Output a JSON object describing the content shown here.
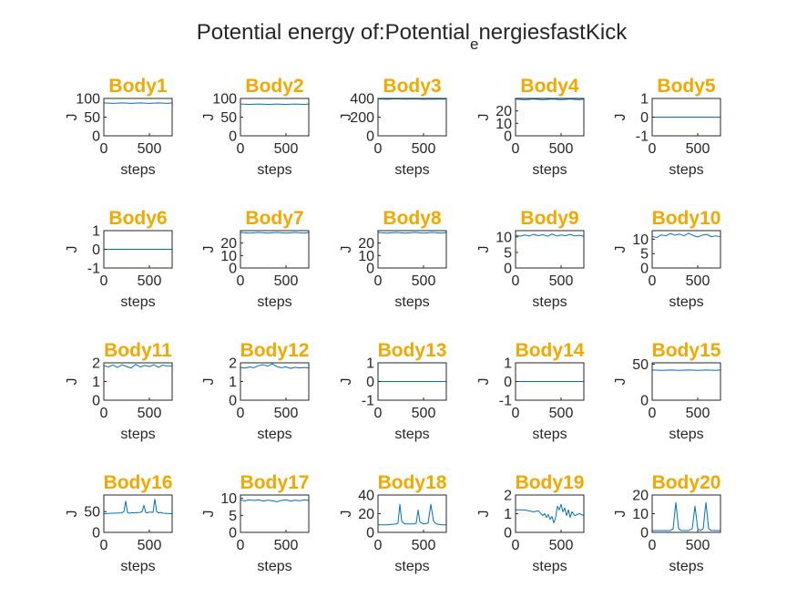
{
  "figure": {
    "title_main": "Potential energy of:Potential",
    "title_sub": "e",
    "title_rest": "nergiesfastKick"
  },
  "colors": {
    "title": "#F3A800",
    "line": "#0072BD",
    "axis": "#262626",
    "text": "#262626"
  },
  "chart_data": [
    {
      "type": "line",
      "title": "Body1",
      "xlabel": "steps",
      "ylabel": "J",
      "xlim": [
        0,
        750
      ],
      "ylim": [
        0,
        100
      ],
      "yticks": [
        0,
        50,
        100
      ],
      "xticks": [
        0,
        500
      ],
      "series": [
        {
          "x": [
            0,
            100,
            200,
            300,
            400,
            500,
            600,
            700,
            750
          ],
          "y": [
            88,
            87,
            88,
            87,
            88,
            87,
            88,
            87,
            88
          ]
        }
      ]
    },
    {
      "type": "line",
      "title": "Body2",
      "xlabel": "steps",
      "ylabel": "J",
      "xlim": [
        0,
        750
      ],
      "ylim": [
        0,
        100
      ],
      "yticks": [
        0,
        50,
        100
      ],
      "xticks": [
        0,
        500
      ],
      "series": [
        {
          "x": [
            0,
            100,
            200,
            300,
            400,
            500,
            600,
            700,
            750
          ],
          "y": [
            85,
            84,
            85,
            84,
            85,
            84,
            85,
            84,
            85
          ]
        }
      ]
    },
    {
      "type": "line",
      "title": "Body3",
      "xlabel": "steps",
      "ylabel": "J",
      "xlim": [
        0,
        750
      ],
      "ylim": [
        0,
        400
      ],
      "yticks": [
        0,
        200,
        400
      ],
      "xticks": [
        0,
        500
      ],
      "series": [
        {
          "x": [
            0,
            100,
            200,
            300,
            400,
            500,
            600,
            700,
            750
          ],
          "y": [
            395,
            392,
            396,
            393,
            395,
            392,
            394,
            393,
            395
          ]
        }
      ]
    },
    {
      "type": "line",
      "title": "Body4",
      "xlabel": "steps",
      "ylabel": "J",
      "xlim": [
        0,
        750
      ],
      "ylim": [
        0,
        30
      ],
      "yticks": [
        0,
        10,
        20
      ],
      "xticks": [
        0,
        500
      ],
      "series": [
        {
          "x": [
            0,
            100,
            200,
            300,
            400,
            500,
            600,
            700,
            750
          ],
          "y": [
            29.5,
            29,
            29.5,
            29,
            29.5,
            29,
            29.5,
            29,
            29.5
          ]
        }
      ]
    },
    {
      "type": "line",
      "title": "Body5",
      "xlabel": "steps",
      "ylabel": "J",
      "xlim": [
        0,
        750
      ],
      "ylim": [
        -1,
        1
      ],
      "yticks": [
        -1,
        0,
        1
      ],
      "xticks": [
        0,
        500
      ],
      "series": [
        {
          "x": [
            0,
            750
          ],
          "y": [
            0,
            0
          ]
        }
      ]
    },
    {
      "type": "line",
      "title": "Body6",
      "xlabel": "steps",
      "ylabel": "J",
      "xlim": [
        0,
        750
      ],
      "ylim": [
        -1,
        1
      ],
      "yticks": [
        -1,
        0,
        1
      ],
      "xticks": [
        0,
        500
      ],
      "series": [
        {
          "x": [
            0,
            750
          ],
          "y": [
            0,
            0
          ]
        }
      ]
    },
    {
      "type": "line",
      "title": "Body7",
      "xlabel": "steps",
      "ylabel": "J",
      "xlim": [
        0,
        750
      ],
      "ylim": [
        0,
        30
      ],
      "yticks": [
        0,
        10,
        20
      ],
      "xticks": [
        0,
        500
      ],
      "series": [
        {
          "x": [
            0,
            100,
            200,
            300,
            400,
            500,
            600,
            700,
            750
          ],
          "y": [
            28.5,
            28,
            28.5,
            28,
            28.5,
            28,
            28.5,
            28,
            28.5
          ]
        }
      ]
    },
    {
      "type": "line",
      "title": "Body8",
      "xlabel": "steps",
      "ylabel": "J",
      "xlim": [
        0,
        750
      ],
      "ylim": [
        0,
        30
      ],
      "yticks": [
        0,
        10,
        20
      ],
      "xticks": [
        0,
        500
      ],
      "series": [
        {
          "x": [
            0,
            100,
            200,
            300,
            400,
            500,
            600,
            700,
            750
          ],
          "y": [
            28.5,
            28,
            28.5,
            28,
            28.5,
            28,
            28.5,
            28,
            28.5
          ]
        }
      ]
    },
    {
      "type": "line",
      "title": "Body9",
      "xlabel": "steps",
      "ylabel": "J",
      "xlim": [
        0,
        750
      ],
      "ylim": [
        0,
        12
      ],
      "yticks": [
        0,
        5,
        10
      ],
      "xticks": [
        0,
        500
      ],
      "series": [
        {
          "x": [
            0,
            50,
            100,
            150,
            200,
            250,
            300,
            350,
            400,
            450,
            500,
            550,
            600,
            650,
            700,
            750
          ],
          "y": [
            10.5,
            10.2,
            10.6,
            10.3,
            10.8,
            10.4,
            10.7,
            10.2,
            10.9,
            10.3,
            10.6,
            10.4,
            10.8,
            10.3,
            10.5,
            10.2
          ]
        }
      ]
    },
    {
      "type": "line",
      "title": "Body10",
      "xlabel": "steps",
      "ylabel": "J",
      "xlim": [
        0,
        750
      ],
      "ylim": [
        0,
        13
      ],
      "yticks": [
        0,
        5,
        10
      ],
      "xticks": [
        0,
        500
      ],
      "series": [
        {
          "x": [
            0,
            50,
            100,
            150,
            200,
            250,
            300,
            350,
            400,
            450,
            500,
            550,
            600,
            650,
            700,
            750
          ],
          "y": [
            11.0,
            10.6,
            11.5,
            11.2,
            12.0,
            11.4,
            11.8,
            11.2,
            12.1,
            11.3,
            10.8,
            11.4,
            11.7,
            10.9,
            11.2,
            10.8
          ]
        }
      ]
    },
    {
      "type": "line",
      "title": "Body11",
      "xlabel": "steps",
      "ylabel": "J",
      "xlim": [
        0,
        750
      ],
      "ylim": [
        0,
        2
      ],
      "yticks": [
        0,
        1,
        2
      ],
      "xticks": [
        0,
        500
      ],
      "series": [
        {
          "x": [
            0,
            50,
            100,
            150,
            200,
            250,
            300,
            350,
            400,
            450,
            500,
            550,
            600,
            650,
            700,
            750
          ],
          "y": [
            1.85,
            1.78,
            1.88,
            1.75,
            1.9,
            1.8,
            1.72,
            1.92,
            1.78,
            1.86,
            1.8,
            1.9,
            1.76,
            1.88,
            1.82,
            1.85
          ]
        }
      ]
    },
    {
      "type": "line",
      "title": "Body12",
      "xlabel": "steps",
      "ylabel": "J",
      "xlim": [
        0,
        750
      ],
      "ylim": [
        0,
        2
      ],
      "yticks": [
        0,
        1,
        2
      ],
      "xticks": [
        0,
        500
      ],
      "series": [
        {
          "x": [
            0,
            50,
            100,
            150,
            200,
            250,
            300,
            350,
            400,
            450,
            500,
            550,
            600,
            650,
            700,
            750
          ],
          "y": [
            1.75,
            1.72,
            1.78,
            1.74,
            1.85,
            1.9,
            1.82,
            1.95,
            1.8,
            1.74,
            1.78,
            1.7,
            1.76,
            1.72,
            1.75,
            1.73
          ]
        }
      ]
    },
    {
      "type": "line",
      "title": "Body13",
      "xlabel": "steps",
      "ylabel": "J",
      "xlim": [
        0,
        750
      ],
      "ylim": [
        -1,
        1
      ],
      "yticks": [
        -1,
        0,
        1
      ],
      "xticks": [
        0,
        500
      ],
      "series": [
        {
          "x": [
            0,
            750
          ],
          "y": [
            0,
            0
          ]
        }
      ]
    },
    {
      "type": "line",
      "title": "Body14",
      "xlabel": "steps",
      "ylabel": "J",
      "xlim": [
        0,
        750
      ],
      "ylim": [
        -1,
        1
      ],
      "yticks": [
        -1,
        0,
        1
      ],
      "xticks": [
        0,
        500
      ],
      "series": [
        {
          "x": [
            0,
            750
          ],
          "y": [
            0,
            0
          ]
        }
      ]
    },
    {
      "type": "line",
      "title": "Body15",
      "xlabel": "steps",
      "ylabel": "J",
      "xlim": [
        0,
        750
      ],
      "ylim": [
        0,
        52
      ],
      "yticks": [
        0,
        50
      ],
      "xticks": [
        0,
        500
      ],
      "series": [
        {
          "x": [
            0,
            100,
            200,
            300,
            400,
            500,
            600,
            700,
            750
          ],
          "y": [
            42,
            41.5,
            42,
            41.5,
            42,
            41.5,
            42,
            41.5,
            42
          ]
        }
      ]
    },
    {
      "type": "line",
      "title": "Body16",
      "xlabel": "steps",
      "ylabel": "J",
      "xlim": [
        0,
        750
      ],
      "ylim": [
        0,
        90
      ],
      "yticks": [
        0,
        50
      ],
      "xticks": [
        0,
        500
      ],
      "series": [
        {
          "x": [
            0,
            100,
            200,
            220,
            240,
            260,
            280,
            300,
            400,
            420,
            440,
            460,
            480,
            500,
            540,
            560,
            580,
            600,
            620,
            650,
            750
          ],
          "y": [
            45,
            46,
            47,
            50,
            75,
            48,
            46,
            47,
            48,
            50,
            65,
            48,
            47,
            49,
            48,
            80,
            50,
            47,
            48,
            46,
            45
          ]
        }
      ]
    },
    {
      "type": "line",
      "title": "Body17",
      "xlabel": "steps",
      "ylabel": "J",
      "xlim": [
        0,
        750
      ],
      "ylim": [
        0,
        11
      ],
      "yticks": [
        0,
        5,
        10
      ],
      "xticks": [
        0,
        500
      ],
      "series": [
        {
          "x": [
            0,
            50,
            100,
            150,
            200,
            250,
            300,
            350,
            400,
            450,
            500,
            550,
            600,
            650,
            700,
            750
          ],
          "y": [
            9.5,
            9.3,
            9.6,
            9.4,
            9.6,
            9.2,
            9.5,
            9.3,
            9.0,
            9.4,
            9.6,
            9.2,
            9.5,
            9.3,
            9.6,
            9.4
          ]
        }
      ]
    },
    {
      "type": "line",
      "title": "Body18",
      "xlabel": "steps",
      "ylabel": "J",
      "xlim": [
        0,
        750
      ],
      "ylim": [
        0,
        40
      ],
      "yticks": [
        0,
        20,
        40
      ],
      "xticks": [
        0,
        500
      ],
      "series": [
        {
          "x": [
            0,
            100,
            200,
            220,
            240,
            260,
            280,
            300,
            400,
            420,
            440,
            460,
            480,
            500,
            550,
            580,
            610,
            640,
            700,
            750
          ],
          "y": [
            8,
            8,
            9,
            10,
            30,
            12,
            10,
            9,
            9,
            10,
            24,
            11,
            10,
            9,
            10,
            30,
            12,
            9,
            8,
            8
          ]
        }
      ]
    },
    {
      "type": "line",
      "title": "Body19",
      "xlabel": "steps",
      "ylabel": "J",
      "xlim": [
        0,
        750
      ],
      "ylim": [
        0,
        2
      ],
      "yticks": [
        0,
        1,
        2
      ],
      "xticks": [
        0,
        500
      ],
      "series": [
        {
          "x": [
            0,
            100,
            200,
            250,
            300,
            320,
            340,
            360,
            380,
            400,
            420,
            440,
            460,
            480,
            500,
            520,
            540,
            560,
            580,
            600,
            620,
            650,
            700,
            750
          ],
          "y": [
            1.2,
            1.2,
            1.1,
            1.15,
            0.9,
            1.0,
            0.8,
            0.95,
            0.7,
            0.85,
            0.5,
            0.8,
            1.4,
            1.2,
            1.5,
            1.1,
            1.3,
            0.9,
            1.2,
            0.8,
            1.1,
            0.9,
            1.0,
            0.9
          ]
        }
      ]
    },
    {
      "type": "line",
      "title": "Body20",
      "xlabel": "steps",
      "ylabel": "J",
      "xlim": [
        0,
        750
      ],
      "ylim": [
        0,
        20
      ],
      "yticks": [
        0,
        10,
        20
      ],
      "xticks": [
        0,
        500
      ],
      "series": [
        {
          "x": [
            0,
            100,
            200,
            230,
            260,
            290,
            320,
            400,
            440,
            470,
            500,
            530,
            560,
            590,
            620,
            650,
            750
          ],
          "y": [
            1,
            1,
            1,
            2,
            16,
            2,
            1,
            1,
            2,
            14,
            2,
            1,
            2,
            16,
            2,
            1,
            1
          ]
        }
      ]
    }
  ]
}
